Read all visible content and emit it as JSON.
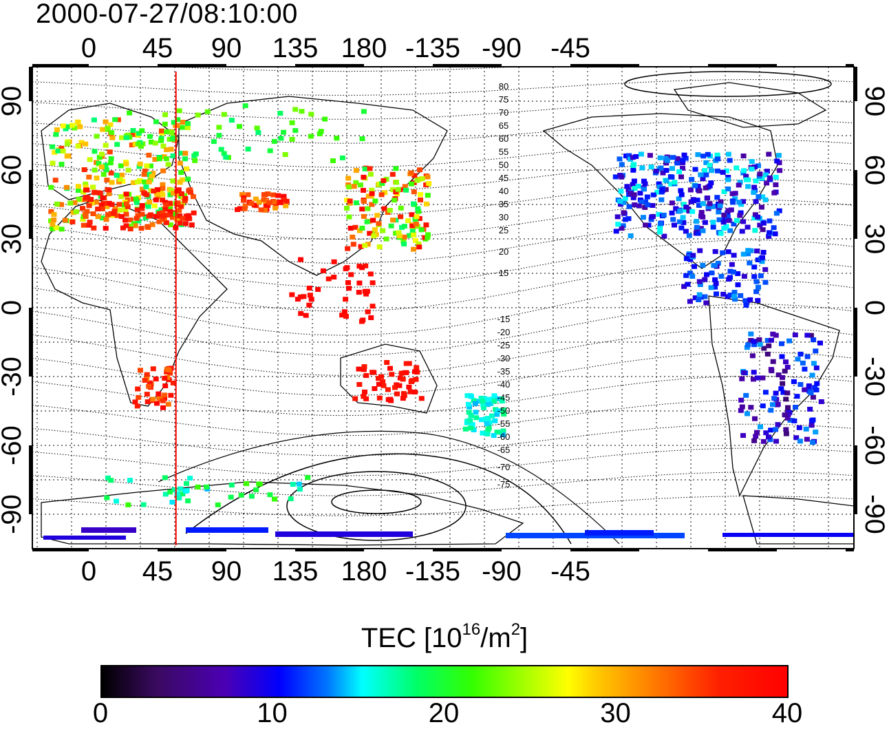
{
  "timestamp": "2000-07-27/08:10:00",
  "map": {
    "longitude_ticks": [
      "0",
      "45",
      "90",
      "135",
      "180",
      "-135",
      "-90",
      "-45"
    ],
    "latitude_ticks": [
      "90",
      "60",
      "30",
      "0",
      "-30",
      "-60",
      "-90"
    ],
    "contour_labels_north": [
      "80",
      "75",
      "70",
      "65",
      "60",
      "55",
      "50",
      "45",
      "40",
      "35",
      "30",
      "25",
      "20",
      "15"
    ],
    "contour_labels_south": [
      "-15",
      "-20",
      "-25",
      "-30",
      "-35",
      "-40",
      "-45",
      "-50",
      "-55",
      "-60",
      "-65",
      "-70",
      "-75"
    ],
    "terminator_longitude": 57
  },
  "colorbar": {
    "title_prefix": "TEC  [10",
    "title_exp": "16",
    "title_unit": "/m",
    "title_exp2": "2",
    "title_suffix": "]",
    "ticks": [
      "0",
      "10",
      "20",
      "30",
      "40"
    ],
    "min": 0,
    "max": 40
  }
}
